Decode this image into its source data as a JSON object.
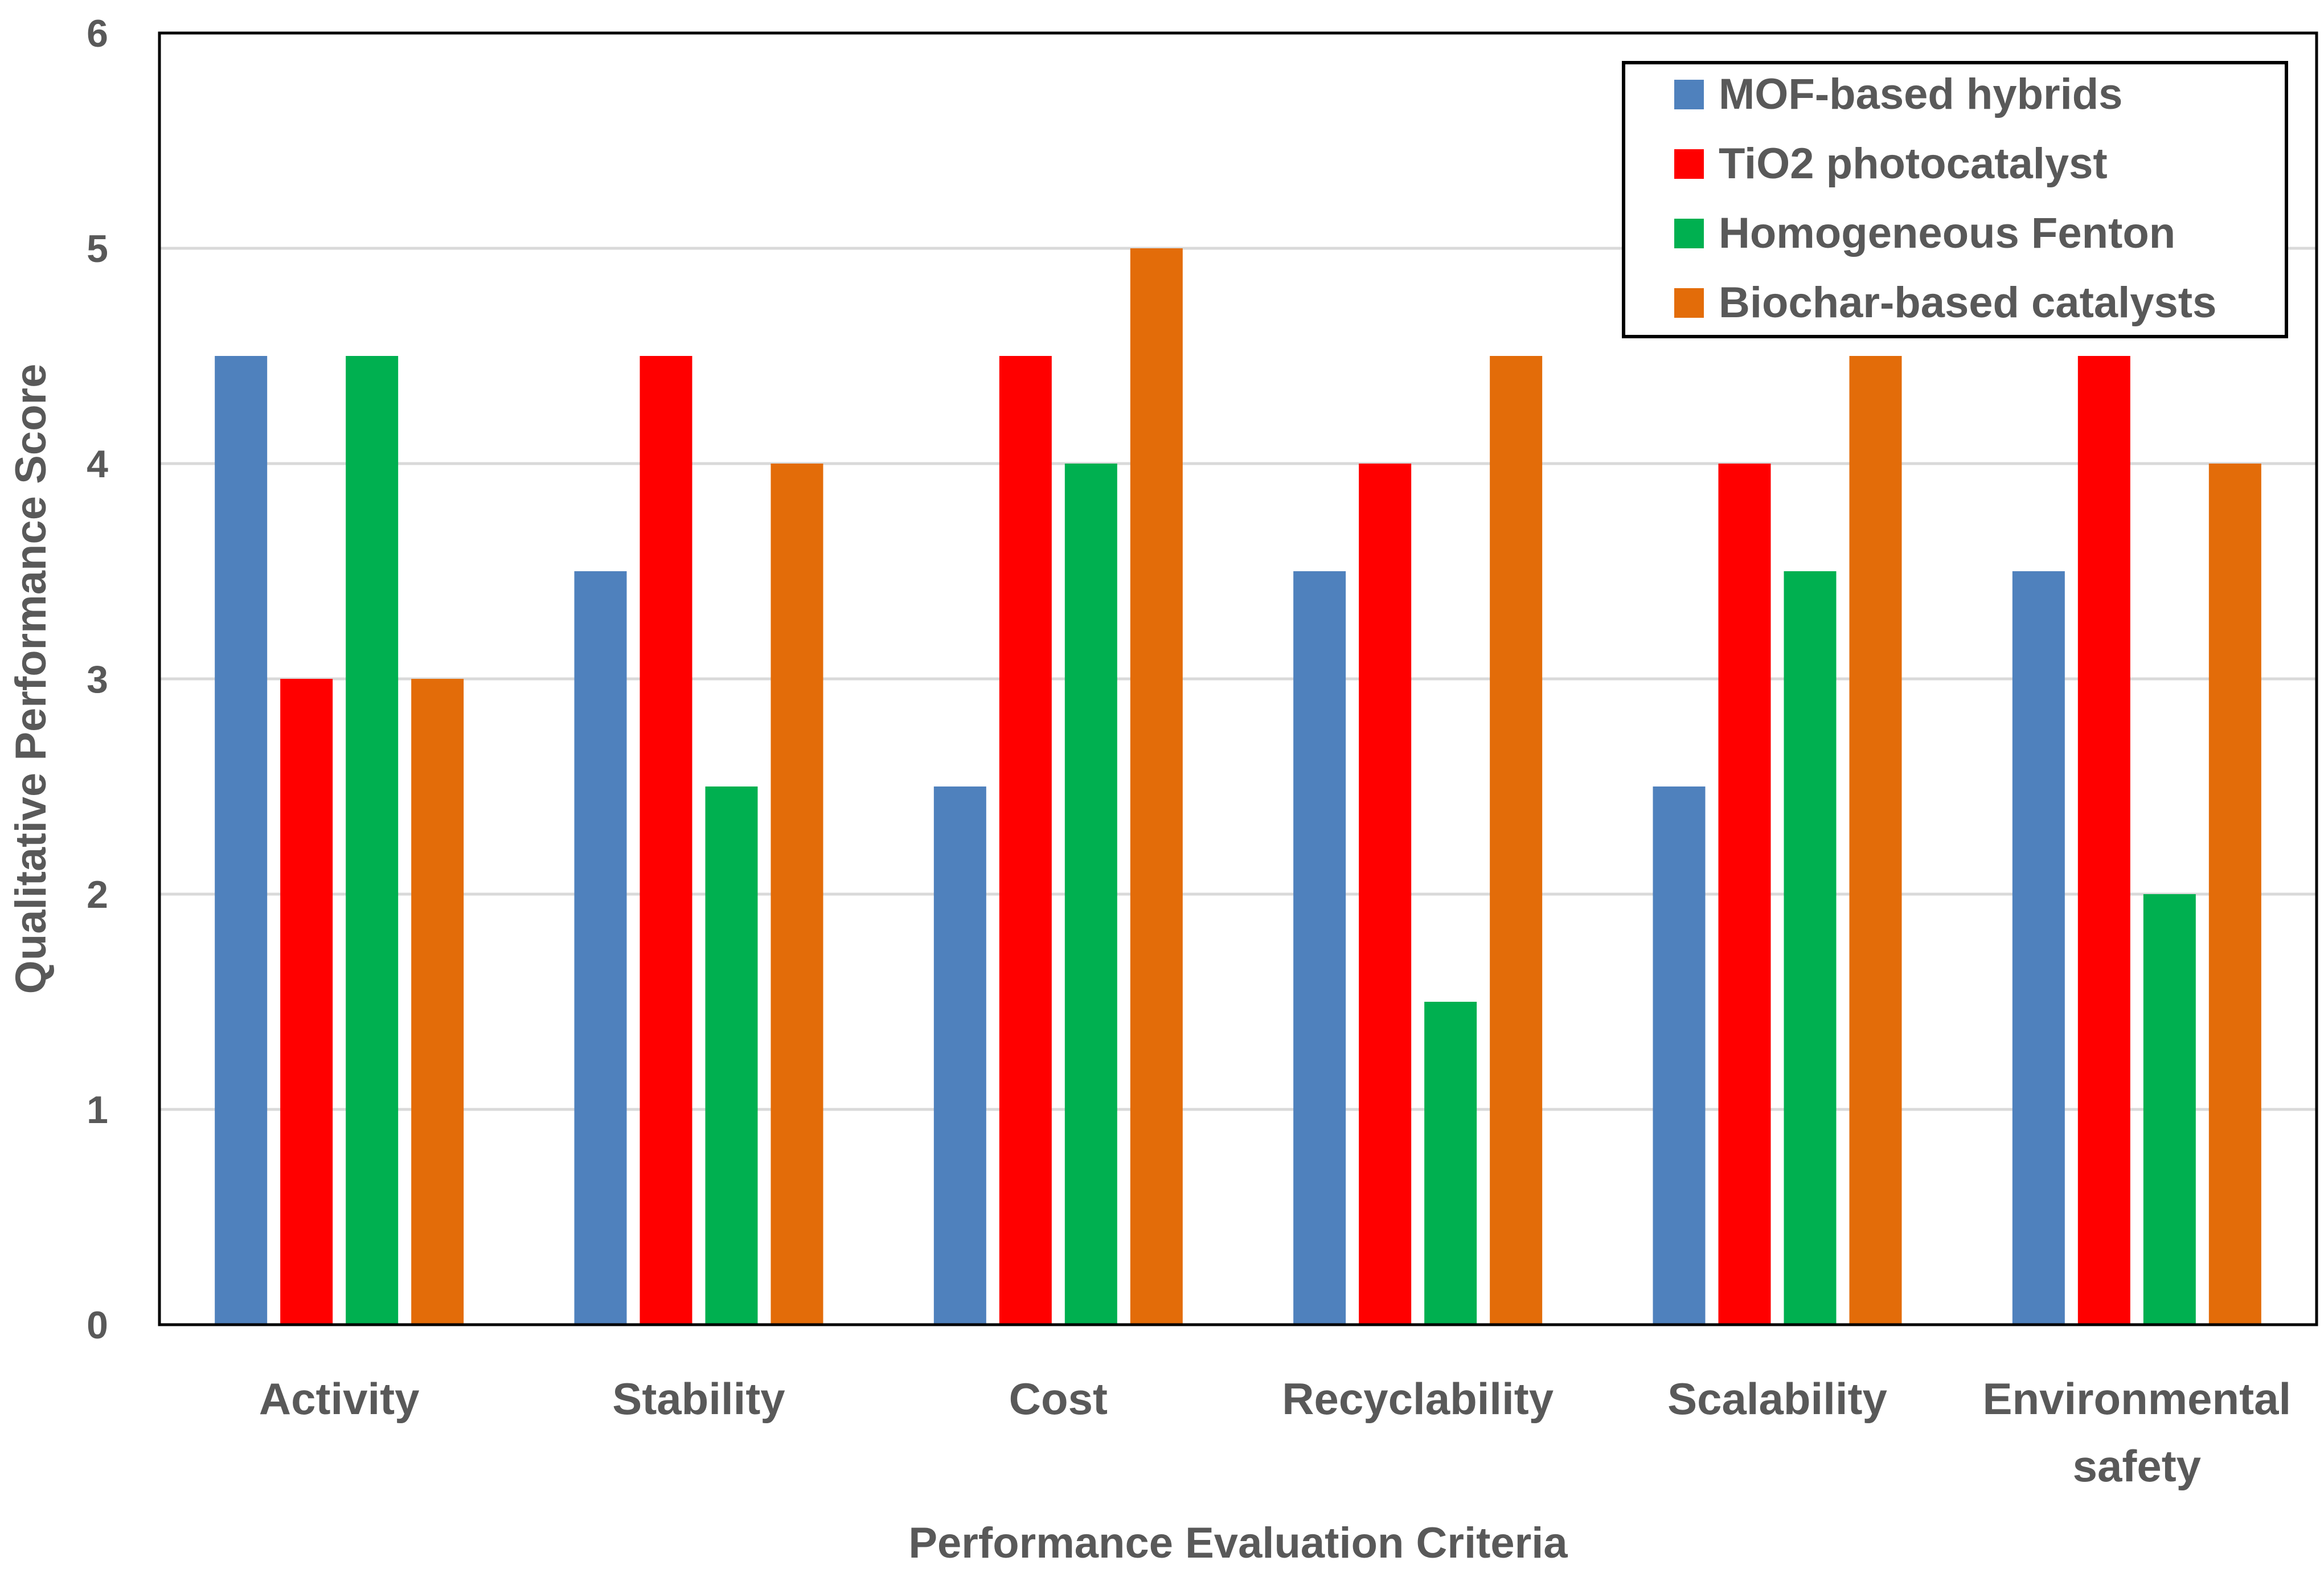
{
  "chart_data": {
    "type": "bar",
    "title": "",
    "xlabel": "Performance Evaluation Criteria",
    "ylabel": "Qualitative Performance Score",
    "ylim": [
      0,
      6
    ],
    "yticks": [
      "0",
      "1",
      "2",
      "3",
      "4",
      "5",
      "6"
    ],
    "grid": true,
    "legend_position": "top-right",
    "categories": [
      [
        "Activity"
      ],
      [
        "Stability"
      ],
      [
        "Cost"
      ],
      [
        "Recyclability"
      ],
      [
        "Scalability"
      ],
      [
        "Environmental",
        "safety"
      ]
    ],
    "series": [
      {
        "name": "MOF-based hybrids",
        "color": "#4f81bd",
        "values": [
          4.5,
          3.5,
          2.5,
          3.5,
          2.5,
          3.5
        ]
      },
      {
        "name": "TiO2 photocatalyst",
        "color": "#ff0000",
        "values": [
          3,
          4.5,
          4.5,
          4,
          4,
          4.5
        ]
      },
      {
        "name": "Homogeneous Fenton",
        "color": "#00b050",
        "values": [
          4.5,
          2.5,
          4,
          1.5,
          3.5,
          2
        ]
      },
      {
        "name": "Biochar-based catalysts",
        "color": "#e36c09",
        "values": [
          3,
          4,
          5,
          4.5,
          4.5,
          4
        ]
      }
    ]
  }
}
